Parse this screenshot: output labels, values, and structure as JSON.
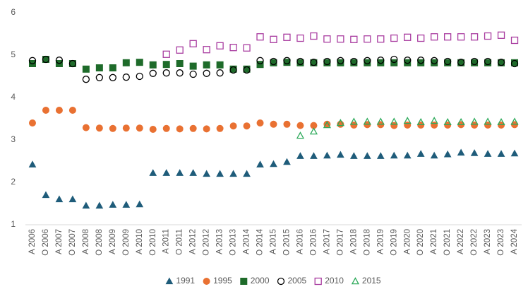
{
  "chart_data": {
    "type": "scatter",
    "categories": [
      "A 2006",
      "O 2006",
      "A 2007",
      "O 2007",
      "A 2008",
      "O 2008",
      "A 2009",
      "O 2009",
      "A 2010",
      "O 2010",
      "A 2011",
      "O 2011",
      "A 2012",
      "O 2012",
      "A 2013",
      "O 2013",
      "A 2014",
      "O 2014",
      "A 2015",
      "O 2015",
      "A 2016",
      "O 2016",
      "A 2017",
      "O 2017",
      "A 2018",
      "O 2018",
      "A 2019",
      "O 2019",
      "A 2020",
      "O 2020",
      "A 2021",
      "O 2021",
      "A 2022",
      "O 2022",
      "A 2023",
      "O 2023",
      "A 2024"
    ],
    "ylim": [
      1,
      6
    ],
    "yticks": [
      1,
      2,
      3,
      4,
      5,
      6
    ],
    "grid": false,
    "legend": "bottom",
    "series": [
      {
        "name": "1991",
        "color": "#1f5c7a",
        "marker": "triangle",
        "filled": true,
        "values": [
          2.42,
          1.7,
          1.6,
          1.6,
          1.45,
          1.45,
          1.47,
          1.47,
          1.48,
          2.22,
          2.22,
          2.22,
          2.22,
          2.2,
          2.2,
          2.2,
          2.2,
          2.42,
          2.43,
          2.48,
          2.62,
          2.62,
          2.63,
          2.65,
          2.62,
          2.62,
          2.62,
          2.63,
          2.63,
          2.67,
          2.63,
          2.66,
          2.7,
          2.69,
          2.67,
          2.67,
          2.68
        ]
      },
      {
        "name": "1995",
        "color": "#e97132",
        "marker": "circle",
        "filled": true,
        "values": [
          3.4,
          3.7,
          3.7,
          3.7,
          3.29,
          3.28,
          3.27,
          3.28,
          3.28,
          3.25,
          3.27,
          3.26,
          3.27,
          3.26,
          3.27,
          3.33,
          3.33,
          3.4,
          3.37,
          3.37,
          3.34,
          3.34,
          3.37,
          3.37,
          3.35,
          3.36,
          3.36,
          3.34,
          3.35,
          3.35,
          3.35,
          3.35,
          3.36,
          3.35,
          3.35,
          3.35,
          3.36
        ]
      },
      {
        "name": "2000",
        "color": "#1e6b2a",
        "marker": "square",
        "filled": true,
        "values": [
          4.8,
          4.9,
          4.8,
          4.8,
          4.67,
          4.7,
          4.7,
          4.82,
          4.83,
          4.77,
          4.78,
          4.8,
          4.74,
          4.77,
          4.77,
          4.67,
          4.67,
          4.78,
          4.82,
          4.83,
          4.82,
          4.82,
          4.82,
          4.82,
          4.82,
          4.82,
          4.82,
          4.82,
          4.82,
          4.82,
          4.82,
          4.82,
          4.82,
          4.82,
          4.82,
          4.82,
          4.82
        ]
      },
      {
        "name": "2005",
        "color": "#000000",
        "marker": "circle",
        "filled": false,
        "values": [
          4.87,
          4.9,
          4.88,
          4.8,
          4.43,
          4.47,
          4.47,
          4.48,
          4.5,
          4.57,
          4.58,
          4.58,
          4.55,
          4.57,
          4.58,
          4.65,
          4.65,
          4.87,
          4.85,
          4.87,
          4.85,
          4.83,
          4.85,
          4.87,
          4.85,
          4.87,
          4.88,
          4.9,
          4.88,
          4.88,
          4.87,
          4.85,
          4.83,
          4.85,
          4.85,
          4.83,
          4.8
        ]
      },
      {
        "name": "2010",
        "color": "#a93ca0",
        "marker": "square",
        "filled": false,
        "values": [
          null,
          null,
          null,
          null,
          null,
          null,
          null,
          null,
          null,
          null,
          5.02,
          5.12,
          5.27,
          5.13,
          5.22,
          5.18,
          5.17,
          5.43,
          5.37,
          5.42,
          5.4,
          5.45,
          5.38,
          5.38,
          5.37,
          5.38,
          5.38,
          5.4,
          5.42,
          5.4,
          5.43,
          5.43,
          5.43,
          5.43,
          5.45,
          5.47,
          5.35
        ]
      },
      {
        "name": "2015",
        "color": "#2eaa5b",
        "marker": "triangle",
        "filled": false,
        "values": [
          null,
          null,
          null,
          null,
          null,
          null,
          null,
          null,
          null,
          null,
          null,
          null,
          null,
          null,
          null,
          null,
          null,
          null,
          null,
          null,
          3.1,
          3.2,
          3.35,
          3.4,
          3.43,
          3.43,
          3.43,
          3.43,
          3.45,
          3.42,
          3.45,
          3.42,
          3.42,
          3.43,
          3.43,
          3.42,
          3.43
        ]
      }
    ]
  }
}
